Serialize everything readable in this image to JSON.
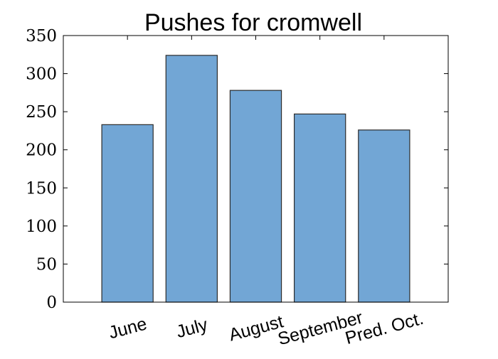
{
  "chart_data": {
    "type": "bar",
    "title": "Pushes for cromwell",
    "categories": [
      "June",
      "July",
      "August",
      "September",
      "Pred. Oct."
    ],
    "values": [
      233,
      324,
      278,
      247,
      226
    ],
    "xlabel": "",
    "ylabel": "",
    "ylim": [
      0,
      350
    ],
    "yticks": [
      "0",
      "50",
      "100",
      "150",
      "200",
      "250",
      "300",
      "350"
    ],
    "grid": false,
    "legend": "none",
    "bar_color": "#72a6d5",
    "bar_edge_color": "#2b2b2b"
  }
}
